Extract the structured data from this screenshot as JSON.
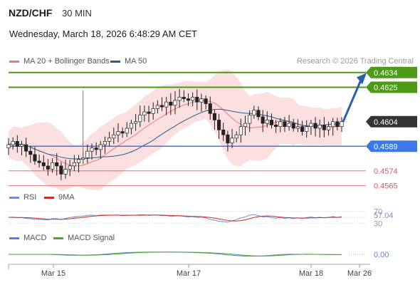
{
  "header": {
    "pair": "NZD/CHF",
    "timeframe": "30 MIN",
    "datetime": "Wednesday, March 18, 2026 6:48:29 AM CET"
  },
  "legend": {
    "ma20_label": "MA 20 + Bollinger Bands",
    "ma50_label": "MA 50",
    "research": "Research © 2026 Trading Central",
    "rsi_label": "RSI",
    "rsi_ma_label": "9MA",
    "macd_label": "MACD",
    "macd_signal_label": "MACD Signal"
  },
  "colors": {
    "ma20": "#e87b7b",
    "bollinger_fill": "#fbd9d9",
    "ma50": "#2a5b96",
    "target": "#4c9a16",
    "pivot": "#3b78e7",
    "support": "#e05b5b",
    "current": "#333333",
    "candle": "#222222",
    "rsi": "#6f8fd8",
    "rsi_ma": "#cc2d2d",
    "macd": "#5b7fd6",
    "macd_signal": "#4aa82a",
    "arrow": "#2d5ea6"
  },
  "chart_data": {
    "type": "candlestick",
    "price_levels": [
      {
        "label": "0.4634",
        "value": 0.4634,
        "kind": "target"
      },
      {
        "label": "0.4625",
        "value": 0.4625,
        "kind": "target"
      },
      {
        "label": "0.4604",
        "value": 0.4604,
        "kind": "current"
      },
      {
        "label": "0.4589",
        "value": 0.4589,
        "kind": "pivot"
      },
      {
        "label": "0.4574",
        "value": 0.4574,
        "kind": "support"
      },
      {
        "label": "0.4565",
        "value": 0.4565,
        "kind": "support"
      }
    ],
    "price_range": [
      0.456,
      0.464
    ],
    "closes": [
      0.459,
      0.4592,
      0.4589,
      0.459,
      0.4586,
      0.4584,
      0.458,
      0.4579,
      0.4577,
      0.4575,
      0.4579,
      0.4577,
      0.4572,
      0.4575,
      0.4577,
      0.4579,
      0.4581,
      0.4582,
      0.4586,
      0.4588,
      0.4587,
      0.459,
      0.4592,
      0.4594,
      0.4596,
      0.4598,
      0.4597,
      0.46,
      0.4603,
      0.4604,
      0.4608,
      0.461,
      0.4609,
      0.4612,
      0.4614,
      0.4613,
      0.4616,
      0.4614,
      0.4617,
      0.4619,
      0.4618,
      0.4617,
      0.4619,
      0.4616,
      0.4618,
      0.4615,
      0.4609,
      0.4605,
      0.4599,
      0.4596,
      0.4591,
      0.4594,
      0.4596,
      0.4601,
      0.4603,
      0.4608,
      0.4611,
      0.4607,
      0.4603,
      0.4605,
      0.4602,
      0.4601,
      0.4604,
      0.4601,
      0.4603,
      0.46,
      0.4601,
      0.4598,
      0.4601,
      0.4603,
      0.46,
      0.4602,
      0.4599,
      0.4601,
      0.4604,
      0.4601,
      0.4604
    ],
    "x_ticks": [
      "Mar 15",
      "Mar 17",
      "Mar 18",
      "Mar 26"
    ],
    "rsi": {
      "levels": [
        "70",
        "30"
      ],
      "current_label": "57.04",
      "current": 57.04
    },
    "macd": {
      "current_label": "0.00",
      "current": 0.0
    }
  }
}
